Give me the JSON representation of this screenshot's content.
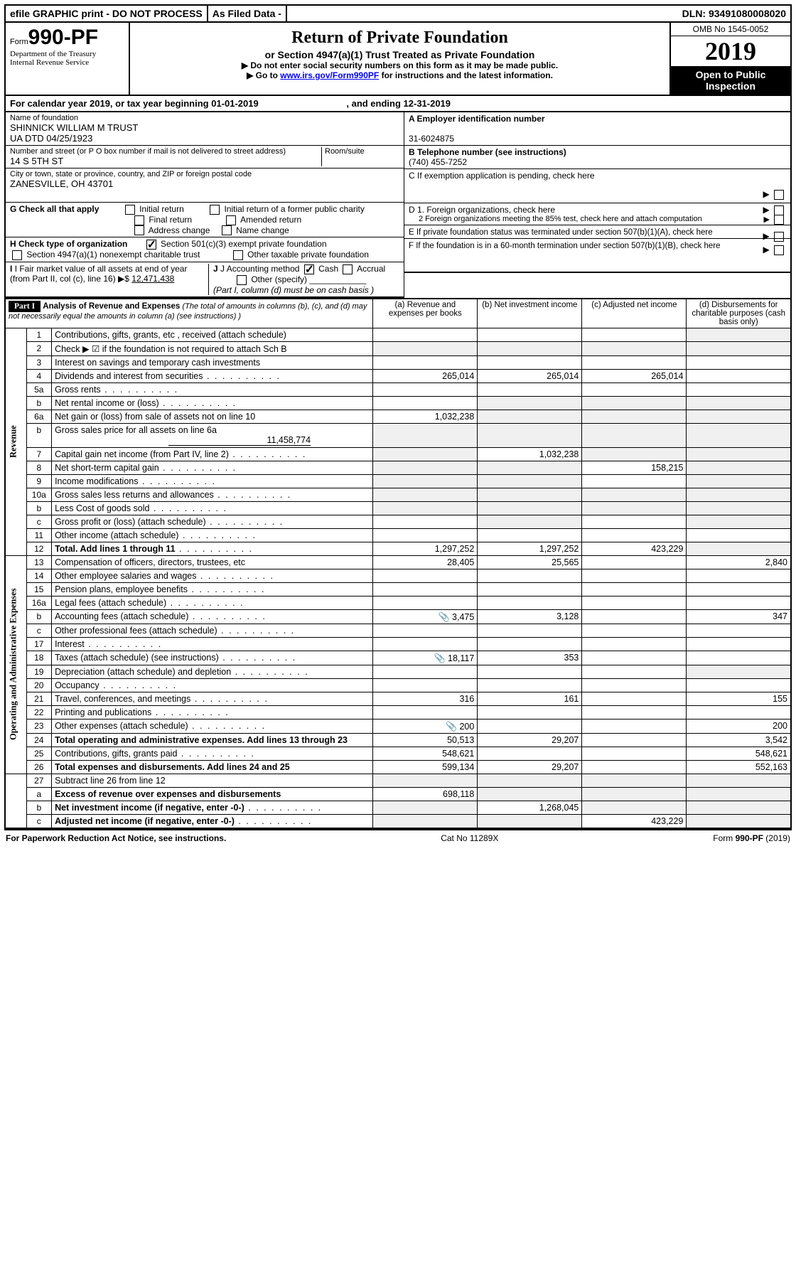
{
  "topbar": {
    "efile": "efile GRAPHIC print - DO NOT PROCESS",
    "asfiled": "As Filed Data -",
    "dln_label": "DLN:",
    "dln": "93491080008020"
  },
  "header": {
    "form_prefix": "Form",
    "form_num": "990-PF",
    "dept": "Department of the Treasury\nInternal Revenue Service",
    "title": "Return of Private Foundation",
    "subtitle": "or Section 4947(a)(1) Trust Treated as Private Foundation",
    "instr1": "▶ Do not enter social security numbers on this form as it may be made public.",
    "instr2_pre": "▶ Go to ",
    "instr2_link": "www.irs.gov/Form990PF",
    "instr2_post": " for instructions and the latest information.",
    "omb": "OMB No  1545-0052",
    "year": "2019",
    "open": "Open to Public Inspection"
  },
  "cal": {
    "line": "For calendar year 2019, or tax year beginning 01-01-2019",
    "mid": ", and ending 12-31-2019"
  },
  "org": {
    "name_lbl": "Name of foundation",
    "name": "SHINNICK WILLIAM M TRUST\nUA DTD 04/25/1923",
    "addr_lbl": "Number and street (or P O  box number if mail is not delivered to street address)",
    "room_lbl": "Room/suite",
    "addr": "14 S 5TH ST",
    "city_lbl": "City or town, state or province, country, and ZIP or foreign postal code",
    "city": "ZANESVILLE, OH  43701"
  },
  "right": {
    "a_lbl": "A Employer identification number",
    "a": "31-6024875",
    "b_lbl": "B Telephone number (see instructions)",
    "b": "(740) 455-7252",
    "c": "C  If exemption application is pending, check here",
    "d1": "D 1. Foreign organizations, check here",
    "d2": "2  Foreign organizations meeting the 85% test, check here and attach computation",
    "e": "E  If private foundation status was terminated under section 507(b)(1)(A), check here",
    "f": "F  If the foundation is in a 60-month termination under section 507(b)(1)(B), check here"
  },
  "g": {
    "label": "G Check all that apply",
    "opts": [
      "Initial return",
      "Initial return of a former public charity",
      "Final return",
      "Amended return",
      "Address change",
      "Name change"
    ]
  },
  "h": {
    "label": "H Check type of organization",
    "opt1": "Section 501(c)(3) exempt private foundation",
    "opt2": "Section 4947(a)(1) nonexempt charitable trust",
    "opt3": "Other taxable private foundation"
  },
  "i": {
    "label": "I Fair market value of all assets at end of year (from Part II, col  (c), line 16) ▶$",
    "val": "12,471,438"
  },
  "j": {
    "label": "J Accounting method",
    "cash": "Cash",
    "accrual": "Accrual",
    "other": "Other (specify)",
    "note": "(Part I, column (d) must be on cash basis )"
  },
  "part1": {
    "label": "Part I",
    "title": "Analysis of Revenue and Expenses",
    "note": "(The total of amounts in columns (b), (c), and (d) may not necessarily equal the amounts in column (a) (see instructions) )",
    "cols": {
      "a": "(a)  Revenue and expenses per books",
      "b": "(b)  Net investment income",
      "c": "(c)  Adjusted net income",
      "d": "(d)  Disbursements for charitable purposes (cash basis only)"
    }
  },
  "side_labels": {
    "rev": "Revenue",
    "exp": "Operating and Administrative Expenses"
  },
  "lines": {
    "1": {
      "n": "1",
      "d": "Contributions, gifts, grants, etc , received (attach schedule)"
    },
    "2": {
      "n": "2",
      "d": "Check ▶ ☑ if the foundation is not required to attach Sch  B"
    },
    "3": {
      "n": "3",
      "d": "Interest on savings and temporary cash investments"
    },
    "4": {
      "n": "4",
      "d": "Dividends and interest from securities",
      "a": "265,014",
      "b": "265,014",
      "c": "265,014"
    },
    "5a": {
      "n": "5a",
      "d": "Gross rents"
    },
    "5b": {
      "n": "b",
      "d": "Net rental income or (loss)"
    },
    "6a": {
      "n": "6a",
      "d": "Net gain or (loss) from sale of assets not on line 10",
      "a": "1,032,238"
    },
    "6b": {
      "n": "b",
      "d": "Gross sales price for all assets on line 6a",
      "sub": "11,458,774"
    },
    "7": {
      "n": "7",
      "d": "Capital gain net income (from Part IV, line 2)",
      "b": "1,032,238"
    },
    "8": {
      "n": "8",
      "d": "Net short-term capital gain",
      "c": "158,215"
    },
    "9": {
      "n": "9",
      "d": "Income modifications"
    },
    "10a": {
      "n": "10a",
      "d": "Gross sales less returns and allowances"
    },
    "10b": {
      "n": "b",
      "d": "Less  Cost of goods sold"
    },
    "10c": {
      "n": "c",
      "d": "Gross profit or (loss) (attach schedule)"
    },
    "11": {
      "n": "11",
      "d": "Other income (attach schedule)"
    },
    "12": {
      "n": "12",
      "d": "Total. Add lines 1 through 11",
      "a": "1,297,252",
      "b": "1,297,252",
      "c": "423,229"
    },
    "13": {
      "n": "13",
      "d": "Compensation of officers, directors, trustees, etc",
      "a": "28,405",
      "b": "25,565",
      "dd": "2,840"
    },
    "14": {
      "n": "14",
      "d": "Other employee salaries and wages"
    },
    "15": {
      "n": "15",
      "d": "Pension plans, employee benefits"
    },
    "16a": {
      "n": "16a",
      "d": "Legal fees (attach schedule)"
    },
    "16b": {
      "n": "b",
      "d": "Accounting fees (attach schedule)",
      "icon": true,
      "a": "3,475",
      "b": "3,128",
      "dd": "347"
    },
    "16c": {
      "n": "c",
      "d": "Other professional fees (attach schedule)"
    },
    "17": {
      "n": "17",
      "d": "Interest"
    },
    "18": {
      "n": "18",
      "d": "Taxes (attach schedule) (see instructions)",
      "icon": true,
      "a": "18,117",
      "b": "353"
    },
    "19": {
      "n": "19",
      "d": "Depreciation (attach schedule) and depletion"
    },
    "20": {
      "n": "20",
      "d": "Occupancy"
    },
    "21": {
      "n": "21",
      "d": "Travel, conferences, and meetings",
      "a": "316",
      "b": "161",
      "dd": "155"
    },
    "22": {
      "n": "22",
      "d": "Printing and publications"
    },
    "23": {
      "n": "23",
      "d": "Other expenses (attach schedule)",
      "icon": true,
      "a": "200",
      "dd": "200"
    },
    "24": {
      "n": "24",
      "d": "Total operating and administrative expenses. Add lines 13 through 23",
      "a": "50,513",
      "b": "29,207",
      "dd": "3,542"
    },
    "25": {
      "n": "25",
      "d": "Contributions, gifts, grants paid",
      "a": "548,621",
      "dd": "548,621"
    },
    "26": {
      "n": "26",
      "d": "Total expenses and disbursements. Add lines 24 and 25",
      "a": "599,134",
      "b": "29,207",
      "dd": "552,163"
    },
    "27": {
      "n": "27",
      "d": "Subtract line 26 from line 12"
    },
    "27a": {
      "n": "a",
      "d": "Excess of revenue over expenses and disbursements",
      "a": "698,118"
    },
    "27b": {
      "n": "b",
      "d": "Net investment income (if negative, enter -0-)",
      "b": "1,268,045"
    },
    "27c": {
      "n": "c",
      "d": "Adjusted net income (if negative, enter -0-)",
      "c": "423,229"
    }
  },
  "footer": {
    "left": "For Paperwork Reduction Act Notice, see instructions.",
    "mid": "Cat  No  11289X",
    "right": "Form 990-PF (2019)"
  }
}
